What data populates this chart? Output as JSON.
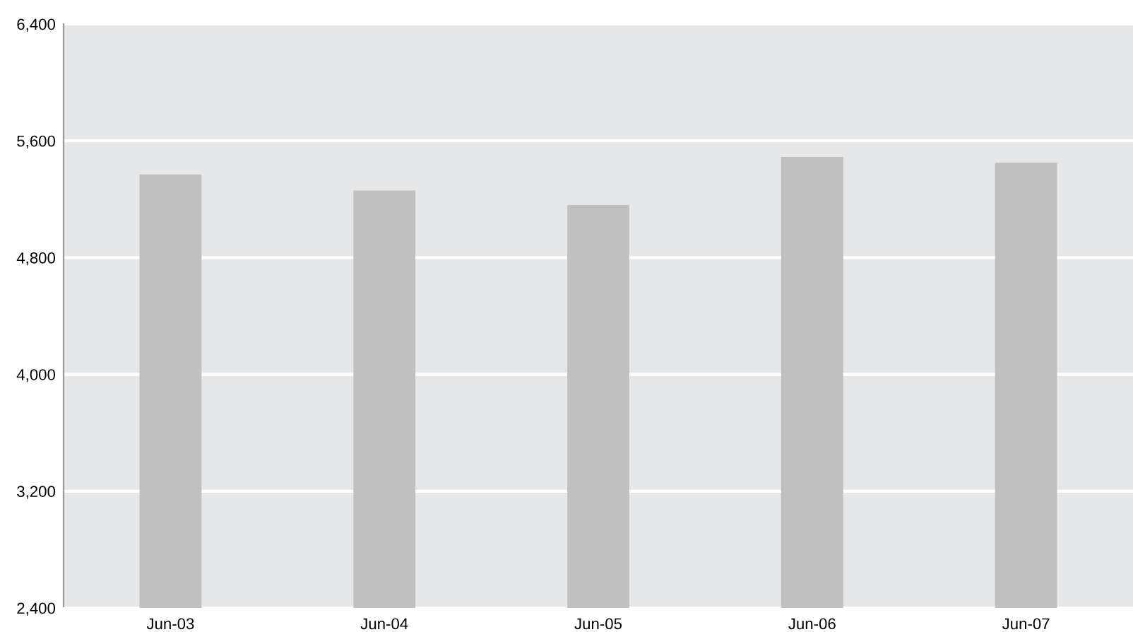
{
  "chart_data": {
    "type": "bar",
    "categories": [
      "Jun-03",
      "Jun-04",
      "Jun-05",
      "Jun-06",
      "Jun-07"
    ],
    "values": [
      5370,
      5260,
      5160,
      5490,
      5450
    ],
    "color": "#c0c0c0",
    "ylim": [
      2400,
      6400
    ],
    "yticks": [
      {
        "value": 2400,
        "label": "2,400"
      },
      {
        "value": 3200,
        "label": "3,200"
      },
      {
        "value": 4000,
        "label": "4,000"
      },
      {
        "value": 4800,
        "label": "4,800"
      },
      {
        "value": 5600,
        "label": "5,600"
      },
      {
        "value": 6400,
        "label": "6,400"
      }
    ],
    "grid": "y"
  }
}
